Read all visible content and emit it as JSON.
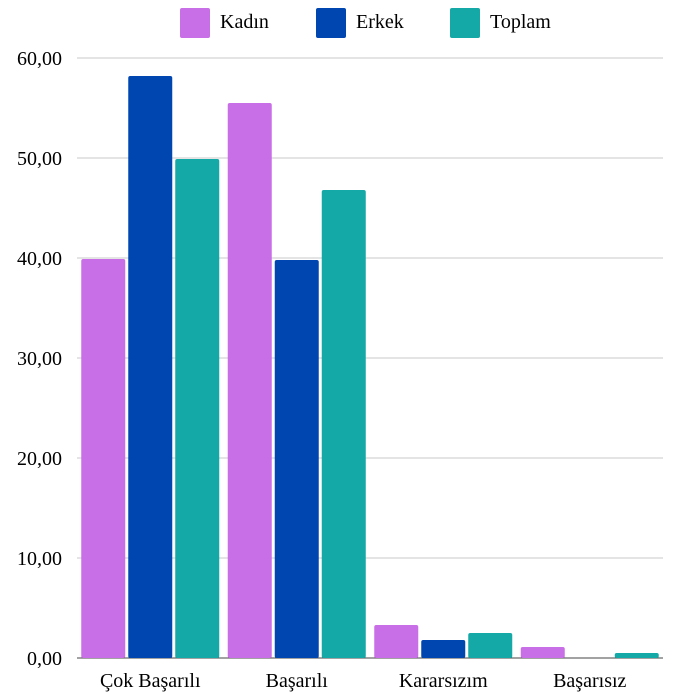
{
  "chart_data": {
    "type": "bar",
    "title": "",
    "xlabel": "",
    "ylabel": "",
    "categories": [
      "Çok Başarılı",
      "Başarılı",
      "Kararsızım",
      "Başarısız"
    ],
    "series": [
      {
        "name": "Kadın",
        "color": "#c86ee6",
        "values": [
          39.9,
          55.5,
          3.3,
          1.1
        ]
      },
      {
        "name": "Erkek",
        "color": "#0046b0",
        "values": [
          58.2,
          39.8,
          1.8,
          0.0
        ]
      },
      {
        "name": "Toplam",
        "color": "#14a8a6",
        "values": [
          49.9,
          46.8,
          2.5,
          0.5
        ]
      }
    ],
    "ylim": [
      0,
      60
    ],
    "yticks": [
      "0,00",
      "10,00",
      "20,00",
      "30,00",
      "40,00",
      "50,00",
      "60,00"
    ],
    "ytick_values": [
      0,
      10,
      20,
      30,
      40,
      50,
      60
    ],
    "grid": true,
    "legend_position": "top"
  }
}
